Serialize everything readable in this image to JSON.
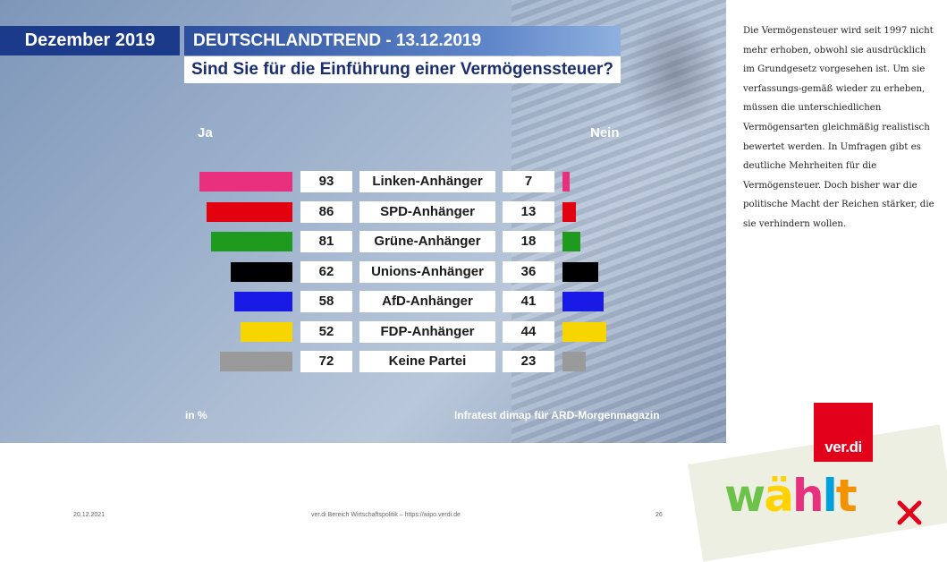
{
  "slide": {
    "header_month": "Dezember 2019",
    "header_trend": "DEUTSCHLANDTREND - 13.12.2019",
    "question": "Sind Sie für die Einführung einer Vermögenssteuer?",
    "label_yes": "Ja",
    "label_no": "Nein",
    "unit": "in %",
    "source": "Infratest dimap für ARD-Morgenmagazin"
  },
  "chart_data": {
    "type": "bar",
    "title": "Sind Sie für die Einführung einer Vermögenssteuer?",
    "categories": [
      "Linken-Anhänger",
      "SPD-Anhänger",
      "Grüne-Anhänger",
      "Unions-Anhänger",
      "AfD-Anhänger",
      "FDP-Anhänger",
      "Keine Partei"
    ],
    "series": [
      {
        "name": "Ja",
        "values": [
          93,
          86,
          81,
          62,
          58,
          52,
          72
        ]
      },
      {
        "name": "Nein",
        "values": [
          7,
          13,
          18,
          36,
          41,
          44,
          23
        ]
      }
    ],
    "colors": [
      "#e8307e",
      "#e3000f",
      "#1e9b1e",
      "#000000",
      "#1a1ae6",
      "#f7d600",
      "#9a9a9a"
    ],
    "xlabel": "",
    "ylabel": "in %",
    "ylim": [
      0,
      100
    ]
  },
  "side_text": "Die Vermögensteuer wird seit 1997 nicht mehr erhoben, obwohl sie ausdrücklich im Grundgesetz vorgesehen ist. Um sie verfassungs-gemäß wieder zu erheben, müssen die unterschiedlichen Vermögensarten gleichmäßig realistisch bewertet werden. In Umfragen gibt es deutliche Mehrheiten für die Vermögensteuer. Doch bisher war die politische Macht der Reichen stärker, die sie verhindern wollen.",
  "footer": {
    "date": "20.12.2021",
    "center": "ver.di Bereich Wirtschaftspolitik – https://wipo.verdi.de",
    "page": "26"
  },
  "logo": {
    "verdi": "ver.di",
    "waehlt": "wählt",
    "waehlt_colors": [
      "#6cc24a",
      "#ffd200",
      "#e8307e",
      "#00a0dc",
      "#f39200"
    ]
  }
}
